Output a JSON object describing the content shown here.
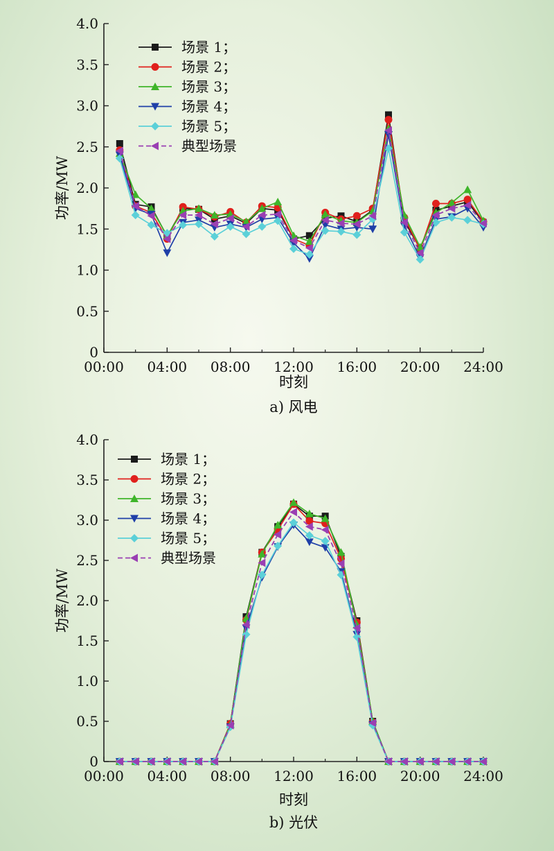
{
  "colors": {
    "series": [
      "#1a1a1a",
      "#e0201c",
      "#3fb52a",
      "#1f3fa8",
      "#5bd0d8",
      "#9a3fb3"
    ],
    "axis": "#222222"
  },
  "markers": [
    "square",
    "circle",
    "triangle-up",
    "triangle-down",
    "diamond",
    "triangle-left"
  ],
  "chart_data": [
    {
      "type": "line",
      "caption": "a) 风电",
      "xlabel": "时刻",
      "ylabel": "功率/MW",
      "xlim": [
        0,
        24
      ],
      "ylim": [
        0,
        4
      ],
      "xticks": [
        0,
        4,
        8,
        12,
        16,
        20,
        24
      ],
      "xtick_labels": [
        "00:00",
        "04:00",
        "08:00",
        "12:00",
        "16:00",
        "20:00",
        "24:00"
      ],
      "yticks": [
        0,
        0.5,
        1.0,
        1.5,
        2.0,
        2.5,
        3.0,
        3.5,
        4.0
      ],
      "ytick_labels": [
        "0",
        "0.5",
        "1.0",
        "1.5",
        "2.0",
        "2.5",
        "3.0",
        "3.5",
        "4.0"
      ],
      "legend_position": "top-left",
      "x": [
        1,
        2,
        3,
        4,
        5,
        6,
        7,
        8,
        9,
        10,
        11,
        12,
        13,
        14,
        15,
        16,
        17,
        18,
        19,
        20,
        21,
        22,
        23,
        24
      ],
      "series": [
        {
          "name": "场景 1；",
          "values": [
            2.54,
            1.8,
            1.77,
            1.41,
            1.75,
            1.74,
            1.62,
            1.66,
            1.57,
            1.75,
            1.73,
            1.38,
            1.42,
            1.63,
            1.66,
            1.59,
            1.73,
            2.89,
            1.6,
            1.26,
            1.73,
            1.78,
            1.83,
            1.58
          ]
        },
        {
          "name": "场景 2；",
          "values": [
            2.46,
            1.78,
            1.7,
            1.38,
            1.77,
            1.74,
            1.65,
            1.71,
            1.58,
            1.78,
            1.76,
            1.38,
            1.3,
            1.7,
            1.62,
            1.66,
            1.75,
            2.83,
            1.64,
            1.25,
            1.81,
            1.81,
            1.86,
            1.59
          ]
        },
        {
          "name": "场景 3；",
          "values": [
            2.42,
            1.92,
            1.75,
            1.42,
            1.72,
            1.75,
            1.67,
            1.68,
            1.59,
            1.75,
            1.83,
            1.42,
            1.35,
            1.68,
            1.6,
            1.58,
            1.72,
            2.72,
            1.67,
            1.28,
            1.7,
            1.82,
            1.98,
            1.6
          ]
        },
        {
          "name": "场景 4；",
          "values": [
            2.4,
            1.75,
            1.68,
            1.21,
            1.58,
            1.61,
            1.52,
            1.56,
            1.52,
            1.62,
            1.64,
            1.33,
            1.14,
            1.55,
            1.5,
            1.52,
            1.5,
            2.65,
            1.54,
            1.15,
            1.62,
            1.65,
            1.75,
            1.52
          ]
        },
        {
          "name": "场景 5；",
          "values": [
            2.36,
            1.67,
            1.55,
            1.45,
            1.55,
            1.56,
            1.41,
            1.53,
            1.44,
            1.53,
            1.6,
            1.26,
            1.19,
            1.48,
            1.47,
            1.43,
            1.62,
            2.48,
            1.46,
            1.13,
            1.58,
            1.64,
            1.61,
            1.56
          ]
        },
        {
          "name": "典型场景",
          "values": [
            2.45,
            1.78,
            1.66,
            1.38,
            1.67,
            1.67,
            1.56,
            1.63,
            1.53,
            1.67,
            1.68,
            1.36,
            1.27,
            1.61,
            1.57,
            1.56,
            1.66,
            2.7,
            1.58,
            1.21,
            1.67,
            1.75,
            1.79,
            1.57
          ]
        }
      ]
    },
    {
      "type": "line",
      "caption": "b) 光伏",
      "xlabel": "时刻",
      "ylabel": "功率/MW",
      "xlim": [
        0,
        24
      ],
      "ylim": [
        0,
        4
      ],
      "xticks": [
        0,
        4,
        8,
        12,
        16,
        20,
        24
      ],
      "xtick_labels": [
        "00:00",
        "04:00",
        "08:00",
        "12:00",
        "16:00",
        "20:00",
        "24:00"
      ],
      "yticks": [
        0,
        0.5,
        1.0,
        1.5,
        2.0,
        2.5,
        3.0,
        3.5,
        4.0
      ],
      "ytick_labels": [
        "0",
        "0.5",
        "1.0",
        "1.5",
        "2.0",
        "2.5",
        "3.0",
        "3.5",
        "4.0"
      ],
      "legend_position": "top-left",
      "x": [
        1,
        2,
        3,
        4,
        5,
        6,
        7,
        8,
        9,
        10,
        11,
        12,
        13,
        14,
        15,
        16,
        17,
        18,
        19,
        20,
        21,
        22,
        23,
        24
      ],
      "series": [
        {
          "name": "场景 1；",
          "values": [
            0,
            0,
            0,
            0,
            0,
            0,
            0,
            0.47,
            1.8,
            2.6,
            2.92,
            3.2,
            3.05,
            3.05,
            2.55,
            1.75,
            0.5,
            0,
            0,
            0,
            0,
            0,
            0,
            0
          ]
        },
        {
          "name": "场景 2；",
          "values": [
            0,
            0,
            0,
            0,
            0,
            0,
            0,
            0.47,
            1.76,
            2.6,
            2.88,
            3.2,
            2.99,
            2.96,
            2.52,
            1.73,
            0.49,
            0,
            0,
            0,
            0,
            0,
            0,
            0
          ]
        },
        {
          "name": "场景 3；",
          "values": [
            0,
            0,
            0,
            0,
            0,
            0,
            0,
            0.46,
            1.78,
            2.58,
            2.94,
            3.22,
            3.08,
            3.02,
            2.6,
            1.7,
            0.5,
            0,
            0,
            0,
            0,
            0,
            0,
            0
          ]
        },
        {
          "name": "场景 4；",
          "values": [
            0,
            0,
            0,
            0,
            0,
            0,
            0,
            0.43,
            1.66,
            2.29,
            2.67,
            2.94,
            2.73,
            2.66,
            2.36,
            1.58,
            0.46,
            0,
            0,
            0,
            0,
            0,
            0,
            0
          ]
        },
        {
          "name": "场景 5；",
          "values": [
            0,
            0,
            0,
            0,
            0,
            0,
            0,
            0.43,
            1.58,
            2.32,
            2.68,
            2.97,
            2.81,
            2.74,
            2.32,
            1.55,
            0.45,
            0,
            0,
            0,
            0,
            0,
            0,
            0
          ]
        },
        {
          "name": "典型场景",
          "values": [
            0,
            0,
            0,
            0,
            0,
            0,
            0,
            0.45,
            1.7,
            2.47,
            2.82,
            3.1,
            2.92,
            2.88,
            2.46,
            1.66,
            0.48,
            0,
            0,
            0,
            0,
            0,
            0,
            0
          ]
        }
      ]
    }
  ]
}
